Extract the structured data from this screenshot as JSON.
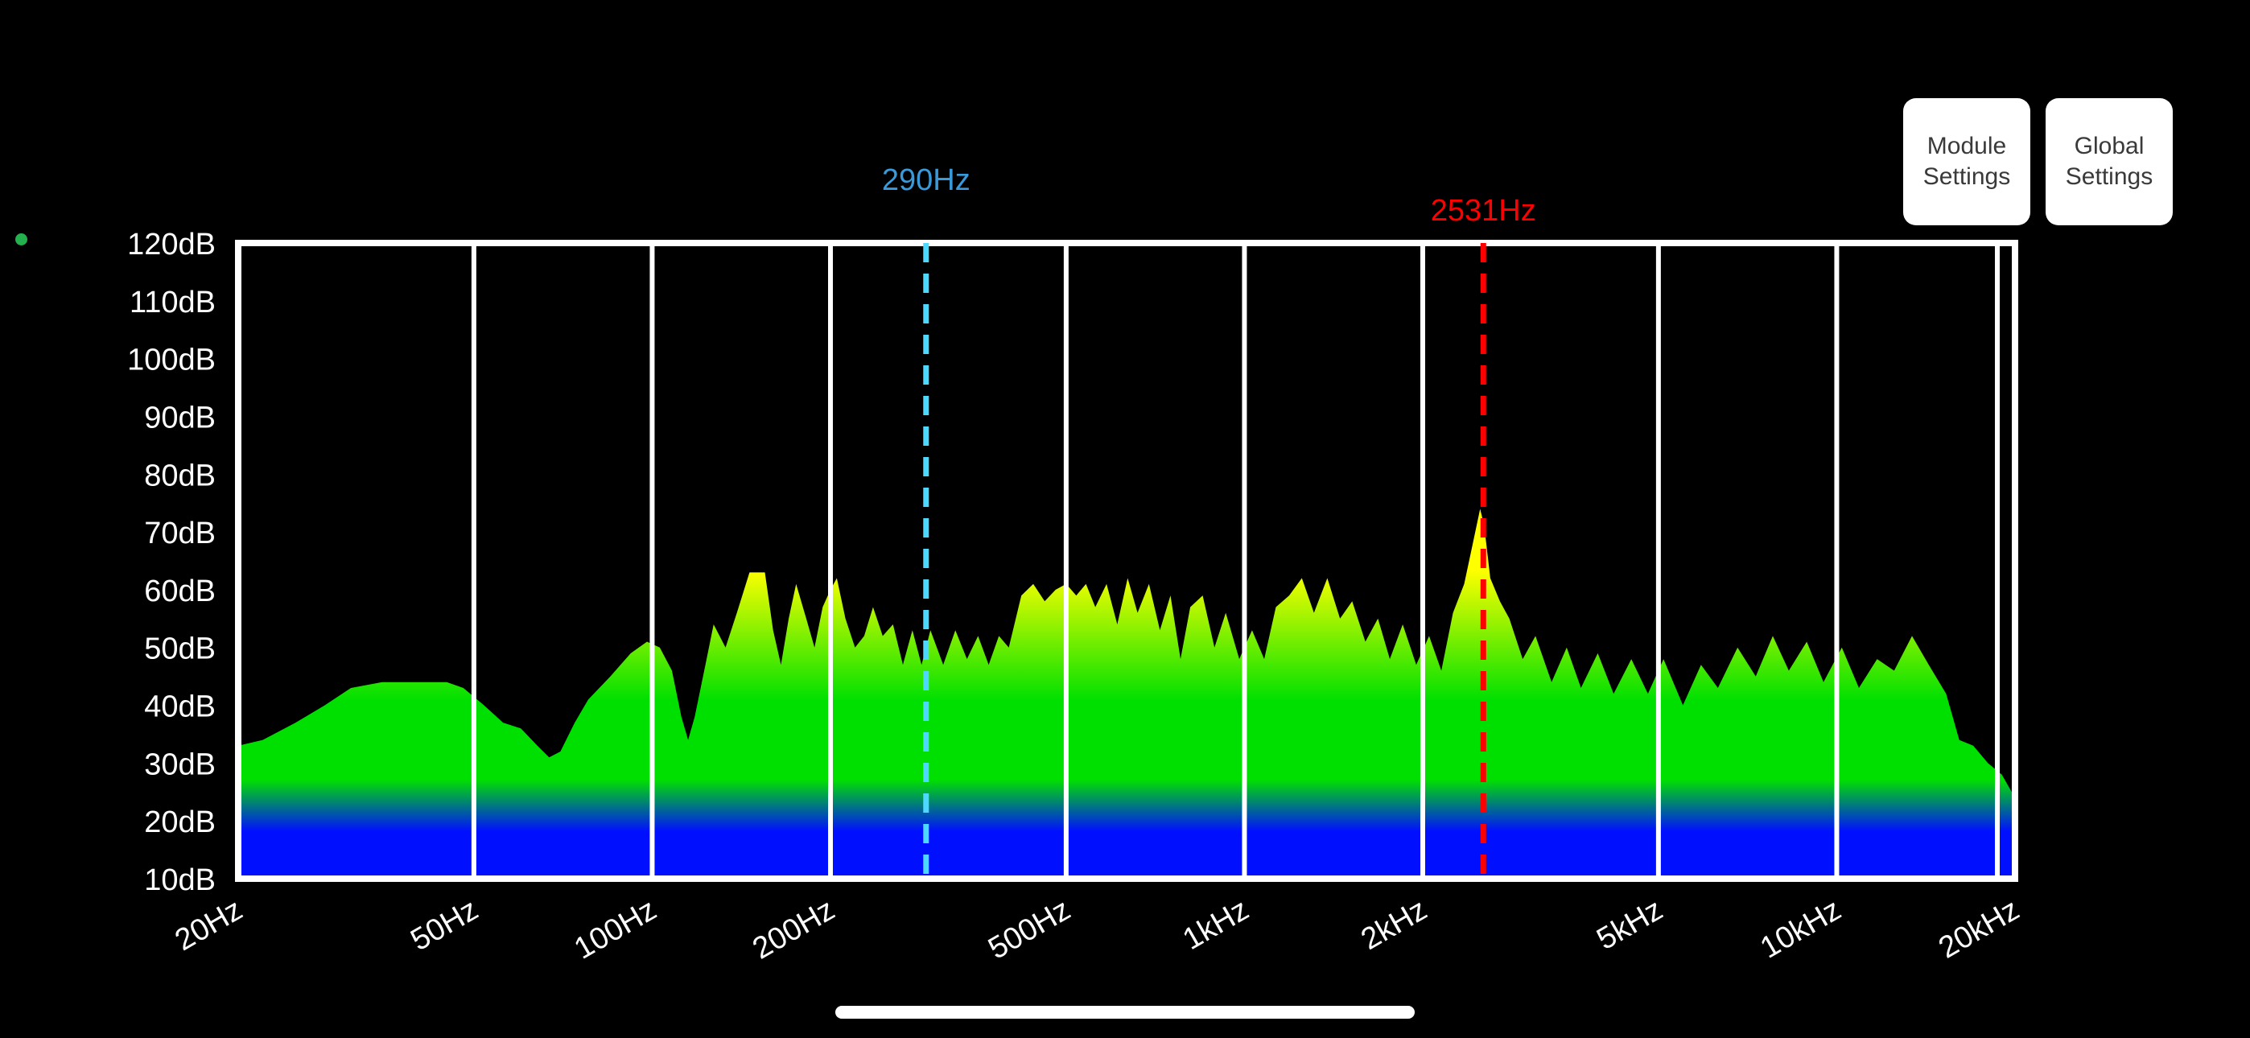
{
  "buttons": {
    "module_settings": "Module\nSettings",
    "global_settings": "Global\nSettings"
  },
  "colors": {
    "background": "#000000",
    "frame": "#ffffff",
    "marker_low": "#4dd9ff",
    "marker_low_label": "#3a9ad9",
    "marker_high": "#ff0000",
    "status_dot": "#22b14c",
    "spectrum_top": "#ffff00",
    "spectrum_mid": "#00e000",
    "spectrum_bottom": "#0010ff"
  },
  "chart_data": {
    "type": "area",
    "x_scale": "log",
    "xlim": [
      20,
      20000
    ],
    "ylim": [
      10,
      120
    ],
    "y_unit": "dB",
    "x_ticks": [
      {
        "value": 20,
        "label": "20Hz"
      },
      {
        "value": 50,
        "label": "50Hz"
      },
      {
        "value": 100,
        "label": "100Hz"
      },
      {
        "value": 200,
        "label": "200Hz"
      },
      {
        "value": 500,
        "label": "500Hz"
      },
      {
        "value": 1000,
        "label": "1kHz"
      },
      {
        "value": 2000,
        "label": "2kHz"
      },
      {
        "value": 5000,
        "label": "5kHz"
      },
      {
        "value": 10000,
        "label": "10kHz"
      },
      {
        "value": 20000,
        "label": "20kHz"
      }
    ],
    "y_ticks": [
      {
        "value": 120,
        "label": "120dB"
      },
      {
        "value": 110,
        "label": "110dB"
      },
      {
        "value": 100,
        "label": "100dB"
      },
      {
        "value": 90,
        "label": "90dB"
      },
      {
        "value": 80,
        "label": "80dB"
      },
      {
        "value": 70,
        "label": "70dB"
      },
      {
        "value": 60,
        "label": "60dB"
      },
      {
        "value": 50,
        "label": "50dB"
      },
      {
        "value": 40,
        "label": "40dB"
      },
      {
        "value": 30,
        "label": "30dB"
      },
      {
        "value": 20,
        "label": "20dB"
      },
      {
        "value": 10,
        "label": "10dB"
      }
    ],
    "markers": [
      {
        "frequency": 290,
        "label": "290Hz",
        "color": "#4dd9ff",
        "label_color": "#3a9ad9"
      },
      {
        "frequency": 2531,
        "label": "2531Hz",
        "color": "#ff0000",
        "label_color": "#ff0000"
      }
    ],
    "spectrum": [
      [
        20,
        33
      ],
      [
        22,
        34
      ],
      [
        25,
        37
      ],
      [
        28,
        40
      ],
      [
        31,
        43
      ],
      [
        35,
        44
      ],
      [
        40,
        44
      ],
      [
        45,
        44
      ],
      [
        48,
        43
      ],
      [
        52,
        40
      ],
      [
        56,
        37
      ],
      [
        60,
        36
      ],
      [
        64,
        33
      ],
      [
        67,
        31
      ],
      [
        70,
        32
      ],
      [
        74,
        37
      ],
      [
        78,
        41
      ],
      [
        85,
        45
      ],
      [
        92,
        49
      ],
      [
        98,
        51
      ],
      [
        103,
        50
      ],
      [
        108,
        46
      ],
      [
        112,
        38
      ],
      [
        115,
        34
      ],
      [
        118,
        38
      ],
      [
        123,
        47
      ],
      [
        127,
        54
      ],
      [
        133,
        50
      ],
      [
        139,
        56
      ],
      [
        146,
        63
      ],
      [
        155,
        63
      ],
      [
        160,
        53
      ],
      [
        165,
        47
      ],
      [
        170,
        55
      ],
      [
        175,
        61
      ],
      [
        182,
        55
      ],
      [
        188,
        50
      ],
      [
        194,
        57
      ],
      [
        200,
        60
      ],
      [
        205,
        62
      ],
      [
        212,
        55
      ],
      [
        220,
        50
      ],
      [
        228,
        52
      ],
      [
        236,
        57
      ],
      [
        245,
        52
      ],
      [
        255,
        54
      ],
      [
        265,
        47
      ],
      [
        275,
        53
      ],
      [
        285,
        47
      ],
      [
        295,
        53
      ],
      [
        310,
        47
      ],
      [
        325,
        53
      ],
      [
        340,
        48
      ],
      [
        355,
        52
      ],
      [
        370,
        47
      ],
      [
        385,
        52
      ],
      [
        400,
        50
      ],
      [
        420,
        59
      ],
      [
        440,
        61
      ],
      [
        460,
        58
      ],
      [
        480,
        60
      ],
      [
        500,
        61
      ],
      [
        520,
        59
      ],
      [
        540,
        61
      ],
      [
        560,
        57
      ],
      [
        585,
        61
      ],
      [
        610,
        54
      ],
      [
        635,
        62
      ],
      [
        660,
        56
      ],
      [
        690,
        61
      ],
      [
        720,
        53
      ],
      [
        750,
        59
      ],
      [
        780,
        48
      ],
      [
        810,
        57
      ],
      [
        850,
        59
      ],
      [
        890,
        50
      ],
      [
        930,
        56
      ],
      [
        980,
        48
      ],
      [
        1030,
        53
      ],
      [
        1080,
        48
      ],
      [
        1130,
        57
      ],
      [
        1190,
        59
      ],
      [
        1250,
        62
      ],
      [
        1310,
        56
      ],
      [
        1380,
        62
      ],
      [
        1450,
        55
      ],
      [
        1520,
        58
      ],
      [
        1600,
        51
      ],
      [
        1680,
        55
      ],
      [
        1760,
        48
      ],
      [
        1850,
        54
      ],
      [
        1950,
        47
      ],
      [
        2050,
        52
      ],
      [
        2150,
        46
      ],
      [
        2250,
        56
      ],
      [
        2350,
        61
      ],
      [
        2430,
        68
      ],
      [
        2500,
        74
      ],
      [
        2540,
        71
      ],
      [
        2600,
        62
      ],
      [
        2700,
        58
      ],
      [
        2800,
        55
      ],
      [
        2950,
        48
      ],
      [
        3100,
        52
      ],
      [
        3300,
        44
      ],
      [
        3500,
        50
      ],
      [
        3700,
        43
      ],
      [
        3950,
        49
      ],
      [
        4200,
        42
      ],
      [
        4500,
        48
      ],
      [
        4800,
        42
      ],
      [
        5100,
        48
      ],
      [
        5500,
        40
      ],
      [
        5900,
        47
      ],
      [
        6300,
        43
      ],
      [
        6800,
        50
      ],
      [
        7300,
        45
      ],
      [
        7800,
        52
      ],
      [
        8300,
        46
      ],
      [
        8900,
        51
      ],
      [
        9500,
        44
      ],
      [
        10200,
        50
      ],
      [
        10900,
        43
      ],
      [
        11700,
        48
      ],
      [
        12500,
        46
      ],
      [
        13400,
        52
      ],
      [
        14300,
        47
      ],
      [
        15300,
        42
      ],
      [
        16100,
        34
      ],
      [
        17000,
        33
      ],
      [
        18000,
        30
      ],
      [
        19000,
        28
      ],
      [
        20000,
        24
      ]
    ]
  }
}
